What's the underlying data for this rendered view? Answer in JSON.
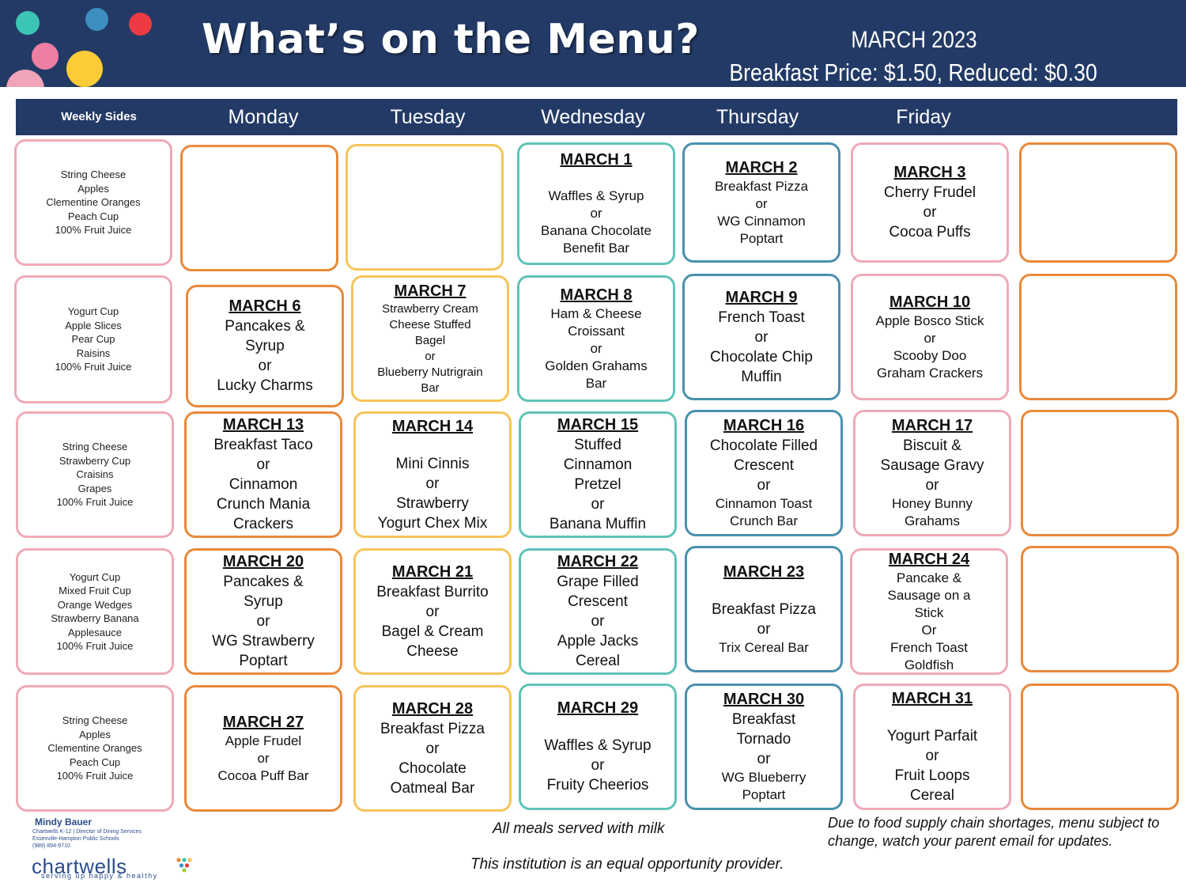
{
  "header": {
    "title": "What’s on the Menu?",
    "month": "MARCH 2023",
    "price": "Breakfast Price: $1.50, Reduced: $0.30"
  },
  "columns": {
    "sides": "Weekly Sides",
    "days": [
      "Monday",
      "Tuesday",
      "Wednesday",
      "Thursday",
      "Friday"
    ]
  },
  "weeks": [
    {
      "sides": [
        "String Cheese",
        "Apples",
        "Clementine Oranges",
        "Peach Cup",
        "100% Fruit Juice"
      ],
      "days": [
        null,
        null,
        {
          "date": "MARCH 1",
          "items": [
            "Waffles & Syrup",
            "or",
            "Banana Chocolate",
            "Benefit Bar"
          ]
        },
        {
          "date": "MARCH 2",
          "items": [
            "Breakfast Pizza",
            "or",
            "WG Cinnamon",
            "Poptart"
          ]
        },
        {
          "date": "MARCH 3",
          "items": [
            "Cherry Frudel",
            "or",
            "Cocoa Puffs"
          ]
        }
      ]
    },
    {
      "sides": [
        "Yogurt Cup",
        "Apple Slices",
        "Pear Cup",
        "Raisins",
        "100% Fruit Juice"
      ],
      "days": [
        {
          "date": "MARCH 6",
          "items": [
            "Pancakes &",
            "Syrup",
            "or",
            "Lucky Charms"
          ]
        },
        {
          "date": "MARCH 7",
          "items": [
            "Strawberry Cream",
            "Cheese Stuffed",
            "Bagel",
            "or",
            "Blueberry Nutrigrain",
            "Bar"
          ]
        },
        {
          "date": "MARCH 8",
          "items": [
            "Ham & Cheese",
            "Croissant",
            "or",
            "Golden Grahams",
            "Bar"
          ]
        },
        {
          "date": "MARCH 9",
          "items": [
            "French Toast",
            "or",
            "Chocolate Chip",
            "Muffin"
          ]
        },
        {
          "date": "MARCH 10",
          "items": [
            "Apple Bosco Stick",
            "or",
            "Scooby Doo",
            "Graham Crackers"
          ]
        }
      ]
    },
    {
      "sides": [
        "String Cheese",
        "Strawberry Cup",
        "Craisins",
        "Grapes",
        "100% Fruit Juice"
      ],
      "days": [
        {
          "date": "MARCH 13",
          "items": [
            "Breakfast Taco",
            "or",
            "Cinnamon",
            "Crunch Mania",
            "Crackers"
          ]
        },
        {
          "date": "MARCH 14",
          "items": [
            "Mini Cinnis",
            "or",
            "Strawberry",
            "Yogurt Chex Mix"
          ]
        },
        {
          "date": "MARCH 15",
          "items": [
            "Stuffed",
            "Cinnamon",
            "Pretzel",
            "or",
            "Banana Muffin"
          ]
        },
        {
          "date": "MARCH 16",
          "items": [
            "Chocolate Filled",
            "Crescent",
            "or",
            "Cinnamon Toast",
            "Crunch Bar"
          ]
        },
        {
          "date": "MARCH 17",
          "items": [
            "Biscuit &",
            "Sausage Gravy",
            "or",
            "Honey Bunny",
            "Grahams"
          ]
        }
      ]
    },
    {
      "sides": [
        "Yogurt Cup",
        "Mixed Fruit Cup",
        "Orange Wedges",
        "Strawberry Banana",
        "Applesauce",
        "100% Fruit Juice"
      ],
      "days": [
        {
          "date": "MARCH 20",
          "items": [
            "Pancakes &",
            "Syrup",
            "or",
            "WG Strawberry",
            "Poptart"
          ]
        },
        {
          "date": "MARCH 21",
          "items": [
            "Breakfast Burrito",
            "or",
            "Bagel & Cream",
            "Cheese"
          ]
        },
        {
          "date": "MARCH 22",
          "items": [
            "Grape Filled",
            "Crescent",
            "or",
            "Apple Jacks",
            "Cereal"
          ]
        },
        {
          "date": "MARCH 23",
          "items": [
            "Breakfast Pizza",
            "or",
            "Trix Cereal Bar"
          ]
        },
        {
          "date": "MARCH 24",
          "items": [
            "Pancake &",
            "Sausage on a",
            "Stick",
            "Or",
            "French Toast",
            "Goldfish"
          ]
        }
      ]
    },
    {
      "sides": [
        "String Cheese",
        "Apples",
        "Clementine Oranges",
        "Peach Cup",
        "100% Fruit Juice"
      ],
      "days": [
        {
          "date": "MARCH 27",
          "items": [
            "Apple Frudel",
            "or",
            "Cocoa Puff Bar"
          ]
        },
        {
          "date": "MARCH 28",
          "items": [
            "Breakfast Pizza",
            "or",
            "Chocolate",
            "Oatmeal Bar"
          ]
        },
        {
          "date": "MARCH 29",
          "items": [
            "Waffles & Syrup",
            "or",
            "Fruity Cheerios"
          ]
        },
        {
          "date": "MARCH 30",
          "items": [
            "Breakfast",
            "Tornado",
            "or",
            "WG Blueberry",
            "Poptart"
          ]
        },
        {
          "date": "MARCH 31",
          "items": [
            "Yogurt Parfait",
            "or",
            "Fruit Loops",
            "Cereal"
          ]
        }
      ]
    }
  ],
  "footer": {
    "milk_note": "All meals served with milk",
    "equal_opportunity": "This institution is an equal opportunity provider.",
    "supply_note": [
      "Due to food supply chain shortages, menu subject to",
      "change, watch your parent email for updates."
    ],
    "contact": {
      "name": "Mindy Bauer",
      "lines": [
        "Chartwells K-12 | Director of Dining Services",
        "Essexville-Hampton Public Schools",
        "(989) 894-9710"
      ]
    },
    "brand": "chartwells",
    "brand_tagline": "serving up happy & healthy"
  }
}
